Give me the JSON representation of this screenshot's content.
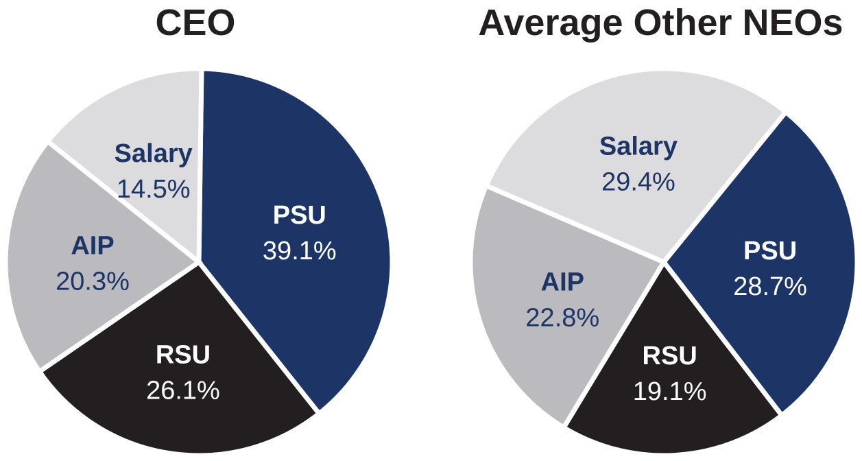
{
  "chart_data": [
    {
      "type": "pie",
      "title": "CEO",
      "slices": [
        {
          "label": "PSU",
          "value": 39.1,
          "display": "39.1%",
          "color": "#1c3566",
          "text_color": "#ffffff"
        },
        {
          "label": "RSU",
          "value": 26.1,
          "display": "26.1%",
          "color": "#231f20",
          "text_color": "#ffffff"
        },
        {
          "label": "AIP",
          "value": 20.3,
          "display": "20.3%",
          "color": "#bbbbbf",
          "text_color": "#1c3566"
        },
        {
          "label": "Salary",
          "value": 14.5,
          "display": "14.5%",
          "color": "#dcdcde",
          "text_color": "#1c3566"
        }
      ]
    },
    {
      "type": "pie",
      "title": "Average Other NEOs",
      "slices": [
        {
          "label": "PSU",
          "value": 28.7,
          "display": "28.7%",
          "color": "#1c3566",
          "text_color": "#ffffff"
        },
        {
          "label": "RSU",
          "value": 19.1,
          "display": "19.1%",
          "color": "#231f20",
          "text_color": "#ffffff"
        },
        {
          "label": "AIP",
          "value": 22.8,
          "display": "22.8%",
          "color": "#bbbbbf",
          "text_color": "#1c3566"
        },
        {
          "label": "Salary",
          "value": 29.4,
          "display": "29.4%",
          "color": "#dcdcde",
          "text_color": "#1c3566"
        }
      ]
    }
  ]
}
